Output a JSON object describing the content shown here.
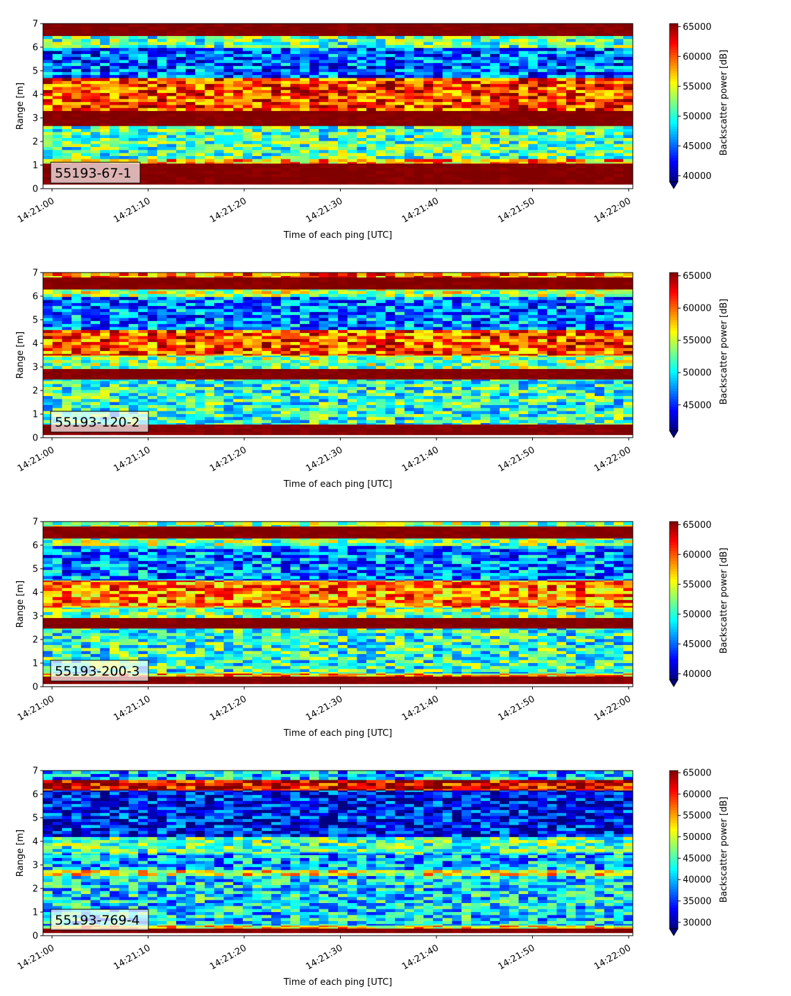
{
  "chart_data": [
    {
      "type": "heatmap",
      "label": "55193-67-1",
      "xlabel": "Time of each ping [UTC]",
      "ylabel": "Range [m]",
      "x_ticks": [
        "14:21:00",
        "14:21:10",
        "14:21:20",
        "14:21:30",
        "14:21:40",
        "14:21:50",
        "14:22:00"
      ],
      "y_ticks": [
        "0",
        "1",
        "2",
        "3",
        "4",
        "5",
        "6",
        "7"
      ],
      "ylim": [
        0,
        7
      ],
      "colorbar": {
        "label": "Backscatter power [dB]",
        "range": [
          39000,
          65500
        ],
        "ticks": [
          "40000",
          "45000",
          "50000",
          "55000",
          "60000",
          "65000"
        ],
        "tick_values": [
          40000,
          45000,
          50000,
          55000,
          60000,
          65000
        ],
        "extend": "min"
      },
      "bands": [
        {
          "range_m": [
            0.2,
            1.1
          ],
          "level": 1.0
        },
        {
          "range_m": [
            1.1,
            1.25
          ],
          "level": 0.7
        },
        {
          "range_m": [
            1.25,
            2.7
          ],
          "level": 0.45
        },
        {
          "range_m": [
            2.7,
            3.3
          ],
          "level": 1.0
        },
        {
          "range_m": [
            3.3,
            4.7
          ],
          "level": 0.82
        },
        {
          "range_m": [
            4.7,
            6.0
          ],
          "level": 0.22
        },
        {
          "range_m": [
            6.0,
            6.5
          ],
          "level": 0.45
        },
        {
          "range_m": [
            6.5,
            7.0
          ],
          "level": 1.0
        }
      ]
    },
    {
      "type": "heatmap",
      "label": "55193-120-2",
      "xlabel": "Time of each ping [UTC]",
      "ylabel": "Range [m]",
      "x_ticks": [
        "14:21:00",
        "14:21:10",
        "14:21:20",
        "14:21:30",
        "14:21:40",
        "14:21:50",
        "14:22:00"
      ],
      "y_ticks": [
        "0",
        "1",
        "2",
        "3",
        "4",
        "5",
        "6",
        "7"
      ],
      "ylim": [
        0,
        7
      ],
      "colorbar": {
        "label": "Backscatter power [dB]",
        "range": [
          41000,
          65500
        ],
        "ticks": [
          "45000",
          "50000",
          "55000",
          "60000",
          "65000"
        ],
        "tick_values": [
          45000,
          50000,
          55000,
          60000,
          65000
        ],
        "extend": "min"
      },
      "bands": [
        {
          "range_m": [
            0.15,
            0.6
          ],
          "level": 1.0
        },
        {
          "range_m": [
            0.6,
            2.5
          ],
          "level": 0.42
        },
        {
          "range_m": [
            2.5,
            2.9
          ],
          "level": 1.0
        },
        {
          "range_m": [
            2.9,
            3.5
          ],
          "level": 0.5
        },
        {
          "range_m": [
            3.5,
            4.6
          ],
          "level": 0.8
        },
        {
          "range_m": [
            4.6,
            6.0
          ],
          "level": 0.25
        },
        {
          "range_m": [
            6.0,
            6.3
          ],
          "level": 0.55
        },
        {
          "range_m": [
            6.3,
            6.8
          ],
          "level": 1.0
        },
        {
          "range_m": [
            6.8,
            7.0
          ],
          "level": 0.75
        }
      ]
    },
    {
      "type": "heatmap",
      "label": "55193-200-3",
      "xlabel": "Time of each ping [UTC]",
      "ylabel": "Range [m]",
      "x_ticks": [
        "14:21:00",
        "14:21:10",
        "14:21:20",
        "14:21:30",
        "14:21:40",
        "14:21:50",
        "14:22:00"
      ],
      "y_ticks": [
        "0",
        "1",
        "2",
        "3",
        "4",
        "5",
        "6",
        "7"
      ],
      "ylim": [
        0,
        7
      ],
      "colorbar": {
        "label": "Backscatter power [dB]",
        "range": [
          39000,
          65500
        ],
        "ticks": [
          "40000",
          "45000",
          "50000",
          "55000",
          "60000",
          "65000"
        ],
        "tick_values": [
          40000,
          45000,
          50000,
          55000,
          60000,
          65000
        ],
        "extend": "min"
      },
      "bands": [
        {
          "range_m": [
            0.15,
            0.45
          ],
          "level": 1.0
        },
        {
          "range_m": [
            0.45,
            0.6
          ],
          "level": 0.7
        },
        {
          "range_m": [
            0.6,
            2.5
          ],
          "level": 0.42
        },
        {
          "range_m": [
            2.5,
            2.95
          ],
          "level": 1.0
        },
        {
          "range_m": [
            2.95,
            3.4
          ],
          "level": 0.48
        },
        {
          "range_m": [
            3.4,
            4.5
          ],
          "level": 0.75
        },
        {
          "range_m": [
            4.5,
            6.0
          ],
          "level": 0.25
        },
        {
          "range_m": [
            6.0,
            6.3
          ],
          "level": 0.5
        },
        {
          "range_m": [
            6.3,
            6.8
          ],
          "level": 1.0
        },
        {
          "range_m": [
            6.8,
            7.0
          ],
          "level": 0.5
        }
      ]
    },
    {
      "type": "heatmap",
      "label": "55193-769-4",
      "xlabel": "Time of each ping [UTC]",
      "ylabel": "Range [m]",
      "x_ticks": [
        "14:21:00",
        "14:21:10",
        "14:21:20",
        "14:21:30",
        "14:21:40",
        "14:21:50",
        "14:22:00"
      ],
      "y_ticks": [
        "0",
        "1",
        "2",
        "3",
        "4",
        "5",
        "6",
        "7"
      ],
      "ylim": [
        0,
        7
      ],
      "colorbar": {
        "label": "Backscatter power [dB]",
        "range": [
          28500,
          65500
        ],
        "ticks": [
          "30000",
          "35000",
          "40000",
          "45000",
          "50000",
          "55000",
          "60000",
          "65000"
        ],
        "tick_values": [
          30000,
          35000,
          40000,
          45000,
          50000,
          55000,
          60000,
          65000
        ],
        "extend": "min"
      },
      "bands": [
        {
          "range_m": [
            0.15,
            0.3
          ],
          "level": 1.0
        },
        {
          "range_m": [
            0.3,
            0.45
          ],
          "level": 0.65
        },
        {
          "range_m": [
            0.45,
            2.55
          ],
          "level": 0.35
        },
        {
          "range_m": [
            2.55,
            2.8
          ],
          "level": 0.62
        },
        {
          "range_m": [
            2.8,
            3.5
          ],
          "level": 0.3
        },
        {
          "range_m": [
            3.5,
            4.2
          ],
          "level": 0.45
        },
        {
          "range_m": [
            4.2,
            6.2
          ],
          "level": 0.13
        },
        {
          "range_m": [
            6.2,
            6.6
          ],
          "level": 0.9
        },
        {
          "range_m": [
            6.6,
            7.0
          ],
          "level": 0.3
        }
      ]
    }
  ]
}
